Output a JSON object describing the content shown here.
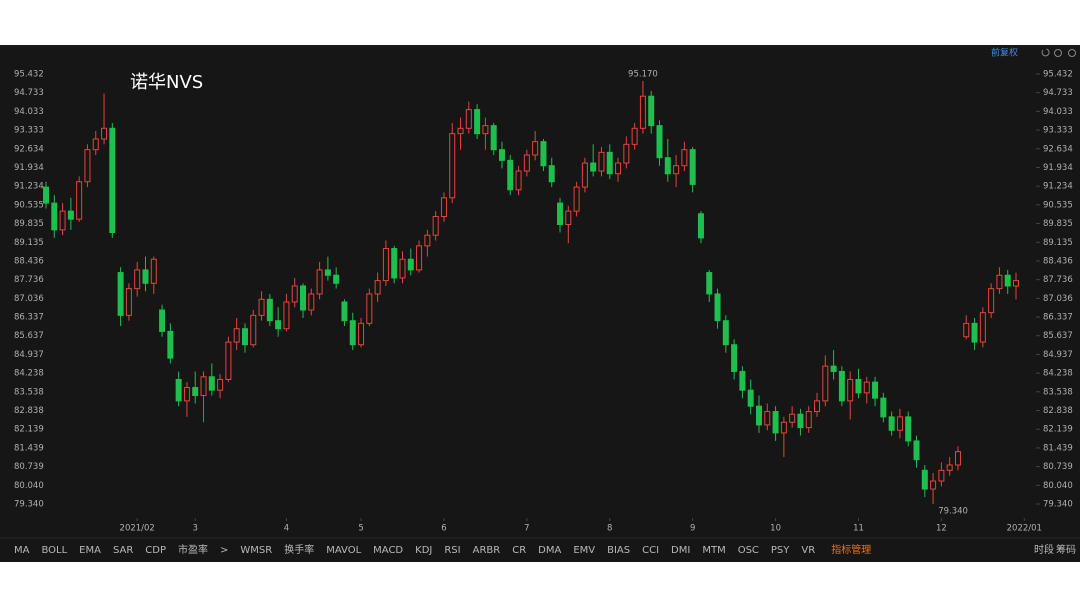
{
  "chart_data": {
    "type": "candlestick",
    "title": "诺华NVS",
    "up_color": "#e8433b",
    "down_color": "#1fbf4f",
    "ylim": [
      79.34,
      95.432
    ],
    "yticks": [
      95.432,
      94.733,
      94.033,
      93.333,
      92.634,
      91.934,
      91.234,
      90.535,
      89.835,
      89.135,
      88.436,
      87.736,
      87.036,
      86.337,
      85.637,
      84.937,
      84.238,
      83.538,
      82.838,
      82.139,
      81.439,
      80.739,
      {
        "value": 80.04,
        "label": "80.040"
      },
      {
        "value": 79.34,
        "label": "79.340"
      }
    ],
    "xlim": [
      0,
      117
    ],
    "xticks": [
      {
        "value": 11,
        "label": "2021/02"
      },
      {
        "value": 18,
        "label": "3"
      },
      {
        "value": 29,
        "label": "4"
      },
      {
        "value": 38,
        "label": "5"
      },
      {
        "value": 48,
        "label": "6"
      },
      {
        "value": 58,
        "label": "7"
      },
      {
        "value": 68,
        "label": "8"
      },
      {
        "value": 78,
        "label": "9"
      },
      {
        "value": 88,
        "label": "10"
      },
      {
        "value": 98,
        "label": "11"
      },
      {
        "value": 108,
        "label": "12"
      },
      {
        "value": 118,
        "label": "2022/01"
      }
    ],
    "annotations": [
      {
        "index": 72,
        "value": 95.17,
        "label": "95.170"
      },
      {
        "index": 107,
        "value": 79.34,
        "label": "79.340"
      }
    ],
    "candles": [
      {
        "open": 91.2,
        "high": 91.4,
        "low": 90.4,
        "close": 90.6
      },
      {
        "open": 90.6,
        "high": 90.9,
        "low": 89.3,
        "close": 89.6
      },
      {
        "open": 89.6,
        "high": 90.6,
        "low": 89.4,
        "close": 90.3
      },
      {
        "open": 90.3,
        "high": 90.8,
        "low": 89.6,
        "close": 90.0
      },
      {
        "open": 90.0,
        "high": 91.6,
        "low": 89.9,
        "close": 91.4
      },
      {
        "open": 91.4,
        "high": 92.8,
        "low": 91.2,
        "close": 92.6
      },
      {
        "open": 92.6,
        "high": 93.3,
        "low": 92.4,
        "close": 93.0
      },
      {
        "open": 93.0,
        "high": 94.7,
        "low": 92.8,
        "close": 93.4
      },
      {
        "open": 93.4,
        "high": 93.6,
        "low": 89.3,
        "close": 89.5
      },
      {
        "open": 88.0,
        "high": 88.2,
        "low": 86.0,
        "close": 86.4
      },
      {
        "open": 86.4,
        "high": 87.6,
        "low": 86.2,
        "close": 87.4
      },
      {
        "open": 87.4,
        "high": 88.4,
        "low": 87.1,
        "close": 88.1
      },
      {
        "open": 88.1,
        "high": 88.6,
        "low": 87.3,
        "close": 87.6
      },
      {
        "open": 87.6,
        "high": 88.6,
        "low": 87.2,
        "close": 88.5
      },
      {
        "open": 86.6,
        "high": 86.8,
        "low": 85.6,
        "close": 85.8
      },
      {
        "open": 85.8,
        "high": 86.1,
        "low": 84.6,
        "close": 84.8
      },
      {
        "open": 84.0,
        "high": 84.3,
        "low": 83.0,
        "close": 83.2
      },
      {
        "open": 83.2,
        "high": 83.9,
        "low": 82.6,
        "close": 83.7
      },
      {
        "open": 83.7,
        "high": 84.3,
        "low": 83.1,
        "close": 83.4
      },
      {
        "open": 83.4,
        "high": 84.3,
        "low": 82.4,
        "close": 84.1
      },
      {
        "open": 84.1,
        "high": 84.6,
        "low": 83.4,
        "close": 83.6
      },
      {
        "open": 83.6,
        "high": 84.2,
        "low": 83.3,
        "close": 84.0
      },
      {
        "open": 84.0,
        "high": 85.6,
        "low": 83.9,
        "close": 85.4
      },
      {
        "open": 85.4,
        "high": 86.3,
        "low": 85.1,
        "close": 85.9
      },
      {
        "open": 85.9,
        "high": 86.1,
        "low": 85.0,
        "close": 85.3
      },
      {
        "open": 85.3,
        "high": 86.6,
        "low": 85.2,
        "close": 86.4
      },
      {
        "open": 86.4,
        "high": 87.3,
        "low": 86.2,
        "close": 87.0
      },
      {
        "open": 87.0,
        "high": 87.2,
        "low": 86.0,
        "close": 86.2
      },
      {
        "open": 86.2,
        "high": 86.7,
        "low": 85.6,
        "close": 85.9
      },
      {
        "open": 85.9,
        "high": 87.2,
        "low": 85.8,
        "close": 86.9
      },
      {
        "open": 86.9,
        "high": 87.8,
        "low": 86.7,
        "close": 87.5
      },
      {
        "open": 87.5,
        "high": 87.6,
        "low": 86.3,
        "close": 86.6
      },
      {
        "open": 86.6,
        "high": 87.4,
        "low": 86.4,
        "close": 87.2
      },
      {
        "open": 87.2,
        "high": 88.4,
        "low": 87.0,
        "close": 88.1
      },
      {
        "open": 88.1,
        "high": 88.6,
        "low": 87.7,
        "close": 87.9
      },
      {
        "open": 87.9,
        "high": 88.2,
        "low": 87.4,
        "close": 87.6
      },
      {
        "open": 86.9,
        "high": 87.0,
        "low": 86.0,
        "close": 86.2
      },
      {
        "open": 86.2,
        "high": 86.5,
        "low": 85.1,
        "close": 85.3
      },
      {
        "open": 85.3,
        "high": 86.3,
        "low": 85.2,
        "close": 86.1
      },
      {
        "open": 86.1,
        "high": 87.4,
        "low": 86.0,
        "close": 87.2
      },
      {
        "open": 87.2,
        "high": 88.0,
        "low": 86.9,
        "close": 87.7
      },
      {
        "open": 87.7,
        "high": 89.2,
        "low": 87.5,
        "close": 88.9
      },
      {
        "open": 88.9,
        "high": 89.0,
        "low": 87.6,
        "close": 87.8
      },
      {
        "open": 87.8,
        "high": 88.8,
        "low": 87.6,
        "close": 88.5
      },
      {
        "open": 88.5,
        "high": 88.9,
        "low": 87.9,
        "close": 88.1
      },
      {
        "open": 88.1,
        "high": 89.2,
        "low": 88.0,
        "close": 89.0
      },
      {
        "open": 89.0,
        "high": 89.6,
        "low": 88.6,
        "close": 89.4
      },
      {
        "open": 89.4,
        "high": 90.3,
        "low": 89.2,
        "close": 90.1
      },
      {
        "open": 90.1,
        "high": 91.0,
        "low": 89.9,
        "close": 90.8
      },
      {
        "open": 90.8,
        "high": 93.6,
        "low": 90.6,
        "close": 93.2
      },
      {
        "open": 93.2,
        "high": 93.8,
        "low": 92.6,
        "close": 93.4
      },
      {
        "open": 93.4,
        "high": 94.4,
        "low": 93.2,
        "close": 94.1
      },
      {
        "open": 94.1,
        "high": 94.3,
        "low": 93.0,
        "close": 93.2
      },
      {
        "open": 93.2,
        "high": 93.8,
        "low": 92.6,
        "close": 93.5
      },
      {
        "open": 93.5,
        "high": 93.6,
        "low": 92.4,
        "close": 92.6
      },
      {
        "open": 92.6,
        "high": 92.9,
        "low": 91.9,
        "close": 92.2
      },
      {
        "open": 92.2,
        "high": 92.4,
        "low": 90.9,
        "close": 91.1
      },
      {
        "open": 91.1,
        "high": 92.0,
        "low": 90.9,
        "close": 91.8
      },
      {
        "open": 91.8,
        "high": 92.6,
        "low": 91.6,
        "close": 92.4
      },
      {
        "open": 92.4,
        "high": 93.3,
        "low": 92.2,
        "close": 92.9
      },
      {
        "open": 92.9,
        "high": 93.0,
        "low": 91.8,
        "close": 92.0
      },
      {
        "open": 92.0,
        "high": 92.3,
        "low": 91.2,
        "close": 91.4
      },
      {
        "open": 90.6,
        "high": 90.8,
        "low": 89.5,
        "close": 89.8
      },
      {
        "open": 89.8,
        "high": 90.5,
        "low": 89.1,
        "close": 90.3
      },
      {
        "open": 90.3,
        "high": 91.4,
        "low": 90.1,
        "close": 91.2
      },
      {
        "open": 91.2,
        "high": 92.3,
        "low": 91.0,
        "close": 92.1
      },
      {
        "open": 92.1,
        "high": 92.8,
        "low": 91.6,
        "close": 91.8
      },
      {
        "open": 91.8,
        "high": 92.7,
        "low": 91.6,
        "close": 92.5
      },
      {
        "open": 92.5,
        "high": 92.8,
        "low": 91.5,
        "close": 91.7
      },
      {
        "open": 91.7,
        "high": 92.3,
        "low": 91.4,
        "close": 92.1
      },
      {
        "open": 92.1,
        "high": 93.1,
        "low": 91.9,
        "close": 92.8
      },
      {
        "open": 92.8,
        "high": 93.6,
        "low": 92.6,
        "close": 93.4
      },
      {
        "open": 93.4,
        "high": 95.17,
        "low": 93.2,
        "close": 94.6
      },
      {
        "open": 94.6,
        "high": 94.8,
        "low": 93.2,
        "close": 93.5
      },
      {
        "open": 93.5,
        "high": 93.7,
        "low": 92.0,
        "close": 92.3
      },
      {
        "open": 92.3,
        "high": 93.0,
        "low": 91.4,
        "close": 91.7
      },
      {
        "open": 91.7,
        "high": 92.4,
        "low": 91.2,
        "close": 92.0
      },
      {
        "open": 92.0,
        "high": 92.9,
        "low": 91.8,
        "close": 92.6
      },
      {
        "open": 92.6,
        "high": 92.7,
        "low": 91.0,
        "close": 91.3
      },
      {
        "open": 90.2,
        "high": 90.3,
        "low": 89.1,
        "close": 89.3
      },
      {
        "open": 88.0,
        "high": 88.1,
        "low": 86.9,
        "close": 87.2
      },
      {
        "open": 87.2,
        "high": 87.4,
        "low": 85.9,
        "close": 86.2
      },
      {
        "open": 86.2,
        "high": 86.4,
        "low": 85.0,
        "close": 85.3
      },
      {
        "open": 85.3,
        "high": 85.5,
        "low": 84.0,
        "close": 84.3
      },
      {
        "open": 84.3,
        "high": 84.5,
        "low": 83.3,
        "close": 83.6
      },
      {
        "open": 83.6,
        "high": 84.0,
        "low": 82.7,
        "close": 83.0
      },
      {
        "open": 83.0,
        "high": 83.4,
        "low": 82.0,
        "close": 82.3
      },
      {
        "open": 82.3,
        "high": 83.1,
        "low": 82.1,
        "close": 82.8
      },
      {
        "open": 82.8,
        "high": 83.0,
        "low": 81.7,
        "close": 82.0
      },
      {
        "open": 82.0,
        "high": 82.6,
        "low": 81.1,
        "close": 82.4
      },
      {
        "open": 82.4,
        "high": 83.0,
        "low": 82.2,
        "close": 82.7
      },
      {
        "open": 82.7,
        "high": 82.9,
        "low": 81.9,
        "close": 82.2
      },
      {
        "open": 82.2,
        "high": 83.0,
        "low": 82.0,
        "close": 82.8
      },
      {
        "open": 82.8,
        "high": 83.5,
        "low": 82.6,
        "close": 83.2
      },
      {
        "open": 83.2,
        "high": 84.9,
        "low": 83.0,
        "close": 84.5
      },
      {
        "open": 84.5,
        "high": 85.1,
        "low": 84.0,
        "close": 84.3
      },
      {
        "open": 84.3,
        "high": 84.5,
        "low": 83.0,
        "close": 83.2
      },
      {
        "open": 83.2,
        "high": 84.3,
        "low": 82.5,
        "close": 84.0
      },
      {
        "open": 84.0,
        "high": 84.4,
        "low": 83.3,
        "close": 83.5
      },
      {
        "open": 83.5,
        "high": 84.1,
        "low": 83.1,
        "close": 83.9
      },
      {
        "open": 83.9,
        "high": 84.1,
        "low": 83.0,
        "close": 83.3
      },
      {
        "open": 83.3,
        "high": 83.5,
        "low": 82.4,
        "close": 82.6
      },
      {
        "open": 82.6,
        "high": 82.8,
        "low": 81.9,
        "close": 82.1
      },
      {
        "open": 82.1,
        "high": 82.9,
        "low": 81.8,
        "close": 82.6
      },
      {
        "open": 82.6,
        "high": 82.8,
        "low": 81.5,
        "close": 81.7
      },
      {
        "open": 81.7,
        "high": 81.9,
        "low": 80.7,
        "close": 81.0
      },
      {
        "open": 80.6,
        "high": 80.8,
        "low": 79.6,
        "close": 79.9
      },
      {
        "open": 79.9,
        "high": 80.5,
        "low": 79.34,
        "close": 80.2
      },
      {
        "open": 80.2,
        "high": 80.9,
        "low": 80.0,
        "close": 80.6
      },
      {
        "open": 80.6,
        "high": 81.1,
        "low": 80.4,
        "close": 80.8
      },
      {
        "open": 80.8,
        "high": 81.5,
        "low": 80.6,
        "close": 81.3
      },
      {
        "open": 85.6,
        "high": 86.4,
        "low": 85.5,
        "close": 86.1
      },
      {
        "open": 86.1,
        "high": 86.3,
        "low": 85.1,
        "close": 85.4
      },
      {
        "open": 85.4,
        "high": 86.7,
        "low": 85.2,
        "close": 86.5
      },
      {
        "open": 86.5,
        "high": 87.6,
        "low": 86.3,
        "close": 87.4
      },
      {
        "open": 87.4,
        "high": 88.2,
        "low": 87.2,
        "close": 87.9
      },
      {
        "open": 87.9,
        "high": 88.1,
        "low": 87.2,
        "close": 87.5
      },
      {
        "open": 87.5,
        "high": 88.0,
        "low": 87.0,
        "close": 87.7
      }
    ]
  },
  "header": {
    "adjust": "前复权"
  },
  "toolbar": {
    "indicators": [
      "MA",
      "BOLL",
      "EMA",
      "SAR",
      "CDP",
      "市盈率",
      ">",
      "WMSR",
      "换手率",
      "MAVOL",
      "MACD",
      "KDJ",
      "RSI",
      "ARBR",
      "CR",
      "DMA",
      "EMV",
      "BIAS",
      "CCI",
      "DMI",
      "MTM",
      "OSC",
      "PSY",
      "VR"
    ],
    "manage": "指标管理",
    "right": [
      "时段",
      "筹码"
    ]
  }
}
